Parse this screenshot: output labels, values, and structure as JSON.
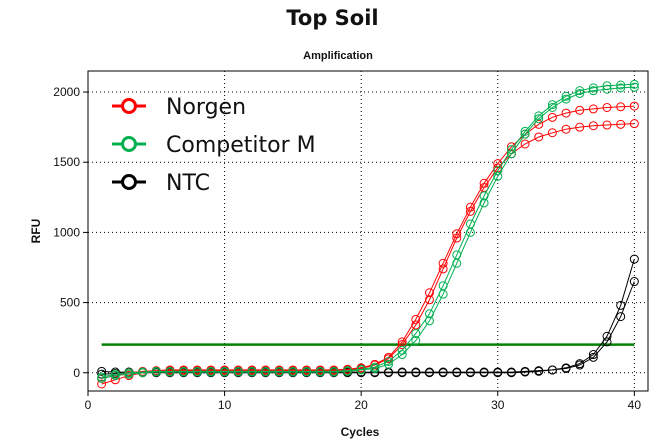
{
  "title": "Top Soil",
  "chart_data": {
    "type": "line",
    "subtitle": "Amplification",
    "xlabel": "Cycles",
    "ylabel": "RFU",
    "xlim": [
      0,
      41
    ],
    "ylim": [
      -130,
      2150
    ],
    "xticks": [
      0,
      10,
      20,
      30,
      40
    ],
    "yticks": [
      0,
      500,
      1000,
      1500,
      2000
    ],
    "grid": "dotted",
    "legend_position": "top-left",
    "threshold": {
      "y": 200,
      "color": "#008000"
    },
    "legend": [
      {
        "label": "Norgen",
        "color": "#ff0000"
      },
      {
        "label": "Competitor M",
        "color": "#00b050"
      },
      {
        "label": "NTC",
        "color": "#000000"
      }
    ],
    "series": [
      {
        "group": "Norgen",
        "color": "#ff0000",
        "x": [
          1,
          2,
          3,
          4,
          5,
          6,
          7,
          8,
          9,
          10,
          11,
          12,
          13,
          14,
          15,
          16,
          17,
          18,
          19,
          20,
          21,
          22,
          23,
          24,
          25,
          26,
          27,
          28,
          29,
          30,
          31,
          32,
          33,
          34,
          35,
          36,
          37,
          38,
          39,
          40
        ],
        "y": [
          -80,
          -50,
          -20,
          0,
          10,
          15,
          15,
          15,
          15,
          15,
          15,
          15,
          15,
          15,
          15,
          15,
          15,
          15,
          20,
          30,
          55,
          100,
          200,
          340,
          520,
          740,
          960,
          1150,
          1320,
          1460,
          1560,
          1630,
          1680,
          1710,
          1735,
          1750,
          1760,
          1765,
          1770,
          1775
        ]
      },
      {
        "group": "Norgen",
        "color": "#ff0000",
        "x": [
          1,
          2,
          3,
          4,
          5,
          6,
          7,
          8,
          9,
          10,
          11,
          12,
          13,
          14,
          15,
          16,
          17,
          18,
          19,
          20,
          21,
          22,
          23,
          24,
          25,
          26,
          27,
          28,
          29,
          30,
          31,
          32,
          33,
          34,
          35,
          36,
          37,
          38,
          39,
          40
        ],
        "y": [
          -40,
          -20,
          0,
          10,
          15,
          20,
          20,
          20,
          20,
          20,
          20,
          20,
          20,
          20,
          20,
          20,
          20,
          20,
          25,
          35,
          60,
          110,
          220,
          380,
          570,
          780,
          990,
          1180,
          1350,
          1490,
          1610,
          1700,
          1770,
          1820,
          1850,
          1870,
          1880,
          1890,
          1895,
          1900
        ]
      },
      {
        "group": "Competitor M",
        "color": "#00b050",
        "x": [
          1,
          2,
          3,
          4,
          5,
          6,
          7,
          8,
          9,
          10,
          11,
          12,
          13,
          14,
          15,
          16,
          17,
          18,
          19,
          20,
          21,
          22,
          23,
          24,
          25,
          26,
          27,
          28,
          29,
          30,
          31,
          32,
          33,
          34,
          35,
          36,
          37,
          38,
          39,
          40
        ],
        "y": [
          -40,
          -20,
          -10,
          0,
          5,
          5,
          5,
          5,
          5,
          5,
          5,
          5,
          5,
          5,
          5,
          5,
          5,
          5,
          10,
          20,
          30,
          60,
          130,
          230,
          370,
          560,
          780,
          1000,
          1210,
          1400,
          1560,
          1700,
          1810,
          1890,
          1950,
          1990,
          2010,
          2020,
          2030,
          2035
        ]
      },
      {
        "group": "Competitor M",
        "color": "#00b050",
        "x": [
          1,
          2,
          3,
          4,
          5,
          6,
          7,
          8,
          9,
          10,
          11,
          12,
          13,
          14,
          15,
          16,
          17,
          18,
          19,
          20,
          21,
          22,
          23,
          24,
          25,
          26,
          27,
          28,
          29,
          30,
          31,
          32,
          33,
          34,
          35,
          36,
          37,
          38,
          39,
          40
        ],
        "y": [
          -30,
          -10,
          0,
          5,
          10,
          10,
          10,
          10,
          10,
          10,
          10,
          10,
          10,
          10,
          10,
          10,
          10,
          10,
          15,
          25,
          40,
          80,
          160,
          280,
          420,
          620,
          840,
          1060,
          1260,
          1440,
          1590,
          1720,
          1830,
          1910,
          1970,
          2010,
          2030,
          2045,
          2050,
          2055
        ]
      },
      {
        "group": "NTC",
        "color": "#000000",
        "x": [
          1,
          2,
          3,
          4,
          5,
          6,
          7,
          8,
          9,
          10,
          11,
          12,
          13,
          14,
          15,
          16,
          17,
          18,
          19,
          20,
          21,
          22,
          23,
          24,
          25,
          26,
          27,
          28,
          29,
          30,
          31,
          32,
          33,
          34,
          35,
          36,
          37,
          38,
          39,
          40
        ],
        "y": [
          10,
          5,
          5,
          5,
          5,
          5,
          5,
          5,
          5,
          5,
          5,
          5,
          5,
          5,
          5,
          5,
          5,
          5,
          5,
          5,
          5,
          5,
          5,
          5,
          5,
          5,
          5,
          5,
          5,
          5,
          5,
          10,
          15,
          20,
          30,
          55,
          110,
          220,
          400,
          650
        ]
      },
      {
        "group": "NTC",
        "color": "#000000",
        "x": [
          1,
          2,
          3,
          4,
          5,
          6,
          7,
          8,
          9,
          10,
          11,
          12,
          13,
          14,
          15,
          16,
          17,
          18,
          19,
          20,
          21,
          22,
          23,
          24,
          25,
          26,
          27,
          28,
          29,
          30,
          31,
          32,
          33,
          34,
          35,
          36,
          37,
          38,
          39,
          40
        ],
        "y": [
          -10,
          -5,
          0,
          0,
          0,
          0,
          0,
          0,
          0,
          0,
          0,
          0,
          0,
          0,
          0,
          0,
          0,
          0,
          0,
          0,
          0,
          0,
          0,
          0,
          0,
          0,
          0,
          0,
          0,
          0,
          0,
          5,
          10,
          20,
          35,
          65,
          130,
          260,
          480,
          810
        ]
      }
    ]
  }
}
